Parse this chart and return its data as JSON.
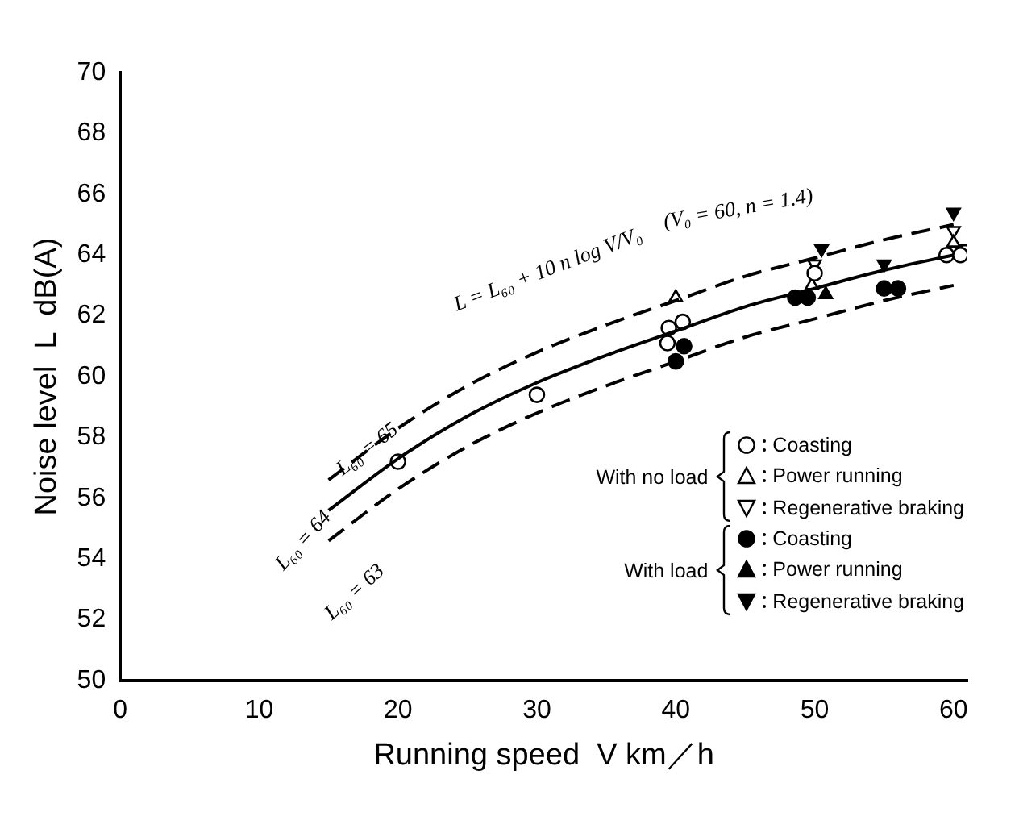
{
  "chart_data": {
    "type": "scatter",
    "xlabel": "Running speed  V km／h",
    "ylabel": "Noise level  L  dB(A)",
    "xlim": [
      0,
      61
    ],
    "ylim": [
      50,
      70
    ],
    "xticks": [
      0,
      10,
      20,
      30,
      40,
      50,
      60
    ],
    "yticks": [
      50,
      52,
      54,
      56,
      58,
      60,
      62,
      64,
      66,
      68,
      70
    ],
    "grid": false,
    "legend": "bottom right",
    "series": [
      {
        "type": "line",
        "color": "#000000",
        "line_style": "dashed",
        "marker": "none",
        "x": [
          15,
          20,
          25,
          30,
          35,
          40,
          45,
          50,
          55,
          60
        ],
        "values": [
          56.6,
          58.3,
          59.7,
          60.8,
          61.7,
          62.5,
          63.3,
          63.9,
          64.5,
          65.0
        ]
      },
      {
        "type": "line",
        "color": "#000000",
        "line_style": "solid",
        "marker": "none",
        "x": [
          15,
          20,
          25,
          30,
          35,
          40,
          45,
          50,
          55,
          60
        ],
        "values": [
          55.6,
          57.3,
          58.7,
          59.8,
          60.7,
          61.5,
          62.3,
          62.9,
          63.5,
          64.0
        ]
      },
      {
        "type": "line",
        "color": "#000000",
        "line_style": "dashed",
        "marker": "none",
        "x": [
          15,
          20,
          25,
          30,
          35,
          40,
          45,
          50,
          55,
          60
        ],
        "values": [
          54.6,
          56.3,
          57.7,
          58.8,
          59.7,
          60.5,
          61.3,
          61.9,
          62.5,
          63.0
        ]
      },
      {
        "name": "Coasting",
        "color": "#ffffff",
        "marker": "circle",
        "x": [
          20,
          30,
          39.5,
          40.5,
          39.4,
          50,
          59.5,
          60.5
        ],
        "values": [
          57.2,
          59.4,
          61.6,
          61.8,
          61.1,
          63.4,
          64.0,
          64.0
        ]
      },
      {
        "name": "Power running",
        "color": "#ffffff",
        "marker": "triangle",
        "x": [
          40,
          49.8,
          60
        ],
        "values": [
          62.6,
          63.0,
          64.4
        ]
      },
      {
        "name": "Regenerative braking",
        "color": "#ffffff",
        "marker": "triangle-down",
        "x": [
          50,
          60,
          61
        ],
        "values": [
          63.7,
          64.8,
          64.2
        ]
      },
      {
        "name": "Coasting",
        "color": "#000000",
        "marker": "circle",
        "x": [
          40,
          40.6,
          48.6,
          49.5,
          55,
          56
        ],
        "values": [
          60.5,
          61.0,
          62.6,
          62.6,
          62.9,
          62.9
        ]
      },
      {
        "name": "Power running",
        "color": "#000000",
        "marker": "triangle",
        "x": [
          50.8
        ],
        "values": [
          62.7
        ]
      },
      {
        "name": "Regenerative braking",
        "color": "#000000",
        "marker": "triangle-down",
        "x": [
          50.5,
          55,
          60
        ],
        "values": [
          64.2,
          63.7,
          65.4
        ]
      }
    ],
    "annotations": [
      "With no load",
      "With load",
      "L = L₆₀ + 10 n log V/V₀",
      "(V₀ = 60, n = 1.4)",
      "L₆₀ = 65",
      "L₆₀ = 64",
      "L₆₀ = 63"
    ]
  }
}
